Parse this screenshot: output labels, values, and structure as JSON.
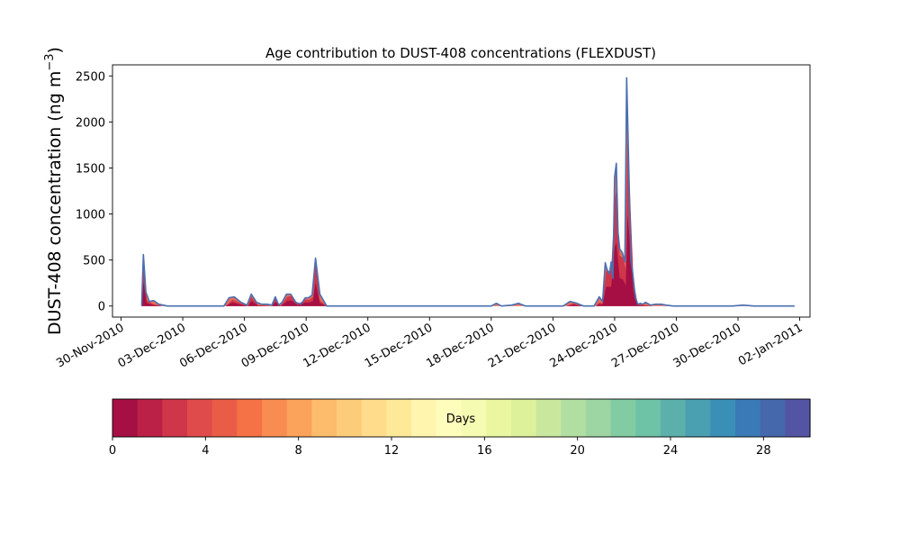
{
  "chart_data": {
    "type": "area",
    "title": "Age contribution to DUST-408 concentrations (FLEXDUST)",
    "ylabel": "DUST-408 concentration (ng m",
    "ylabel_sup": "−3",
    "ylabel_close": ")",
    "ylim": [
      -120,
      2620
    ],
    "yticks": [
      0,
      500,
      1000,
      1500,
      2000,
      2500
    ],
    "xlim": [
      "2010-11-29T14:00",
      "2011-01-02T12:00"
    ],
    "xticks": [
      "30-Nov-2010",
      "03-Dec-2010",
      "06-Dec-2010",
      "09-Dec-2010",
      "12-Dec-2010",
      "15-Dec-2010",
      "18-Dec-2010",
      "21-Dec-2010",
      "24-Dec-2010",
      "27-Dec-2010",
      "30-Dec-2010",
      "02-Jan-2011"
    ],
    "xtick_dates": [
      "2010-11-30",
      "2010-12-03",
      "2010-12-06",
      "2010-12-09",
      "2010-12-12",
      "2010-12-15",
      "2010-12-18",
      "2010-12-21",
      "2010-12-24",
      "2010-12-27",
      "2010-12-30",
      "2011-01-02"
    ],
    "grid": false,
    "series_total": {
      "x": [
        "2010-12-01T00:00",
        "2010-12-01T02:00",
        "2010-12-01T05:00",
        "2010-12-01T09:00",
        "2010-12-01T14:00",
        "2010-12-01T20:00",
        "2010-12-02T06:00",
        "2010-12-05T00:00",
        "2010-12-05T06:00",
        "2010-12-05T12:00",
        "2010-12-05T20:00",
        "2010-12-06T03:00",
        "2010-12-06T08:00",
        "2010-12-06T14:00",
        "2010-12-06T20:00",
        "2010-12-07T02:00",
        "2010-12-07T08:00",
        "2010-12-07T12:00",
        "2010-12-07T16:00",
        "2010-12-07T20:00",
        "2010-12-08T01:00",
        "2010-12-08T06:00",
        "2010-12-08T12:00",
        "2010-12-08T18:00",
        "2010-12-08T23:00",
        "2010-12-09T03:00",
        "2010-12-09T07:00",
        "2010-12-09T11:00",
        "2010-12-09T16:00",
        "2010-12-10T00:00",
        "2010-12-18T00:00",
        "2010-12-18T06:00",
        "2010-12-18T12:00",
        "2010-12-19T00:00",
        "2010-12-19T08:00",
        "2010-12-19T16:00",
        "2010-12-21T12:00",
        "2010-12-21T20:00",
        "2010-12-22T04:00",
        "2010-12-22T12:00",
        "2010-12-23T00:00",
        "2010-12-23T06:00",
        "2010-12-23T10:00",
        "2010-12-23T13:00",
        "2010-12-23T15:00",
        "2010-12-23T18:00",
        "2010-12-23T20:00",
        "2010-12-23T22:00",
        "2010-12-24T00:00",
        "2010-12-24T02:00",
        "2010-12-24T04:00",
        "2010-12-24T06:00",
        "2010-12-24T09:00",
        "2010-12-24T12:00",
        "2010-12-24T14:00",
        "2010-12-24T16:00",
        "2010-12-24T19:00",
        "2010-12-24T21:00",
        "2010-12-25T00:00",
        "2010-12-25T03:00",
        "2010-12-25T06:00",
        "2010-12-25T09:00",
        "2010-12-25T12:00",
        "2010-12-25T18:00",
        "2010-12-26T00:00",
        "2010-12-26T06:00",
        "2010-12-26T12:00",
        "2010-12-26T20:00",
        "2010-12-29T18:00",
        "2010-12-30T06:00",
        "2010-12-30T18:00",
        "2011-01-01T18:00"
      ],
      "y": [
        0,
        560,
        150,
        50,
        60,
        20,
        0,
        0,
        90,
        100,
        40,
        10,
        130,
        40,
        20,
        20,
        10,
        100,
        10,
        40,
        130,
        130,
        40,
        20,
        90,
        90,
        120,
        520,
        130,
        0,
        0,
        30,
        0,
        10,
        30,
        0,
        0,
        50,
        30,
        0,
        0,
        100,
        50,
        470,
        400,
        350,
        480,
        300,
        1400,
        1550,
        800,
        620,
        580,
        480,
        2480,
        1700,
        500,
        370,
        100,
        20,
        30,
        20,
        40,
        10,
        20,
        20,
        10,
        0,
        0,
        10,
        0,
        0
      ]
    },
    "series_young": {
      "x": [
        "2010-12-01T00:00",
        "2010-12-01T02:00",
        "2010-12-01T06:00",
        "2010-12-01T14:00",
        "2010-12-02T00:00",
        "2010-12-05T02:00",
        "2010-12-05T10:00",
        "2010-12-05T20:00",
        "2010-12-06T04:00",
        "2010-12-06T08:00",
        "2010-12-06T16:00",
        "2010-12-07T08:00",
        "2010-12-07T12:00",
        "2010-12-07T18:00",
        "2010-12-08T02:00",
        "2010-12-08T07:00",
        "2010-12-08T14:00",
        "2010-12-08T23:00",
        "2010-12-09T04:00",
        "2010-12-09T08:00",
        "2010-12-09T11:00",
        "2010-12-09T16:00",
        "2010-12-10T00:00",
        "2010-12-21T16:00",
        "2010-12-22T00:00",
        "2010-12-22T10:00",
        "2010-12-23T02:00",
        "2010-12-23T06:00",
        "2010-12-23T10:00",
        "2010-12-23T14:00",
        "2010-12-23T20:00",
        "2010-12-24T00:00",
        "2010-12-24T02:00",
        "2010-12-24T06:00",
        "2010-12-24T10:00",
        "2010-12-24T13:00",
        "2010-12-24T15:00",
        "2010-12-24T18:00",
        "2010-12-24T22:00",
        "2010-12-25T03:00",
        "2010-12-25T10:00",
        "2010-12-25T20:00"
      ],
      "y": [
        0,
        480,
        60,
        20,
        0,
        0,
        70,
        30,
        0,
        100,
        10,
        0,
        80,
        0,
        100,
        110,
        20,
        70,
        70,
        100,
        460,
        60,
        0,
        0,
        30,
        0,
        0,
        40,
        30,
        380,
        380,
        1150,
        1250,
        550,
        520,
        400,
        1800,
        1200,
        280,
        20,
        10,
        0
      ]
    },
    "colorbar": {
      "label": "Days",
      "range": [
        0,
        30
      ],
      "ticks": [
        "0",
        "4",
        "8",
        "12",
        "16",
        "20",
        "24",
        "28"
      ],
      "colors": [
        "#a50f44",
        "#bb2146",
        "#d0364a",
        "#df4b4b",
        "#e95d47",
        "#f47245",
        "#f88c51",
        "#fba35b",
        "#fdbb6c",
        "#fdcc7a",
        "#fedc8c",
        "#fee998",
        "#fff5ae",
        "#fffdbc",
        "#f6fbb2",
        "#ebf7a0",
        "#dcf19a",
        "#c9e89e",
        "#b1dfa2",
        "#9dd5a3",
        "#82ccа4",
        "#6ec2a5",
        "#5bb0ab",
        "#4a9fb0",
        "#3a8fb6",
        "#3a7ab6",
        "#4568ad",
        "#5355a4"
      ]
    },
    "stack_colors": {
      "youngest": "#a50f44",
      "young": "#d0364a",
      "mid": "#e95d47",
      "outline": "#4a6fb0"
    }
  }
}
